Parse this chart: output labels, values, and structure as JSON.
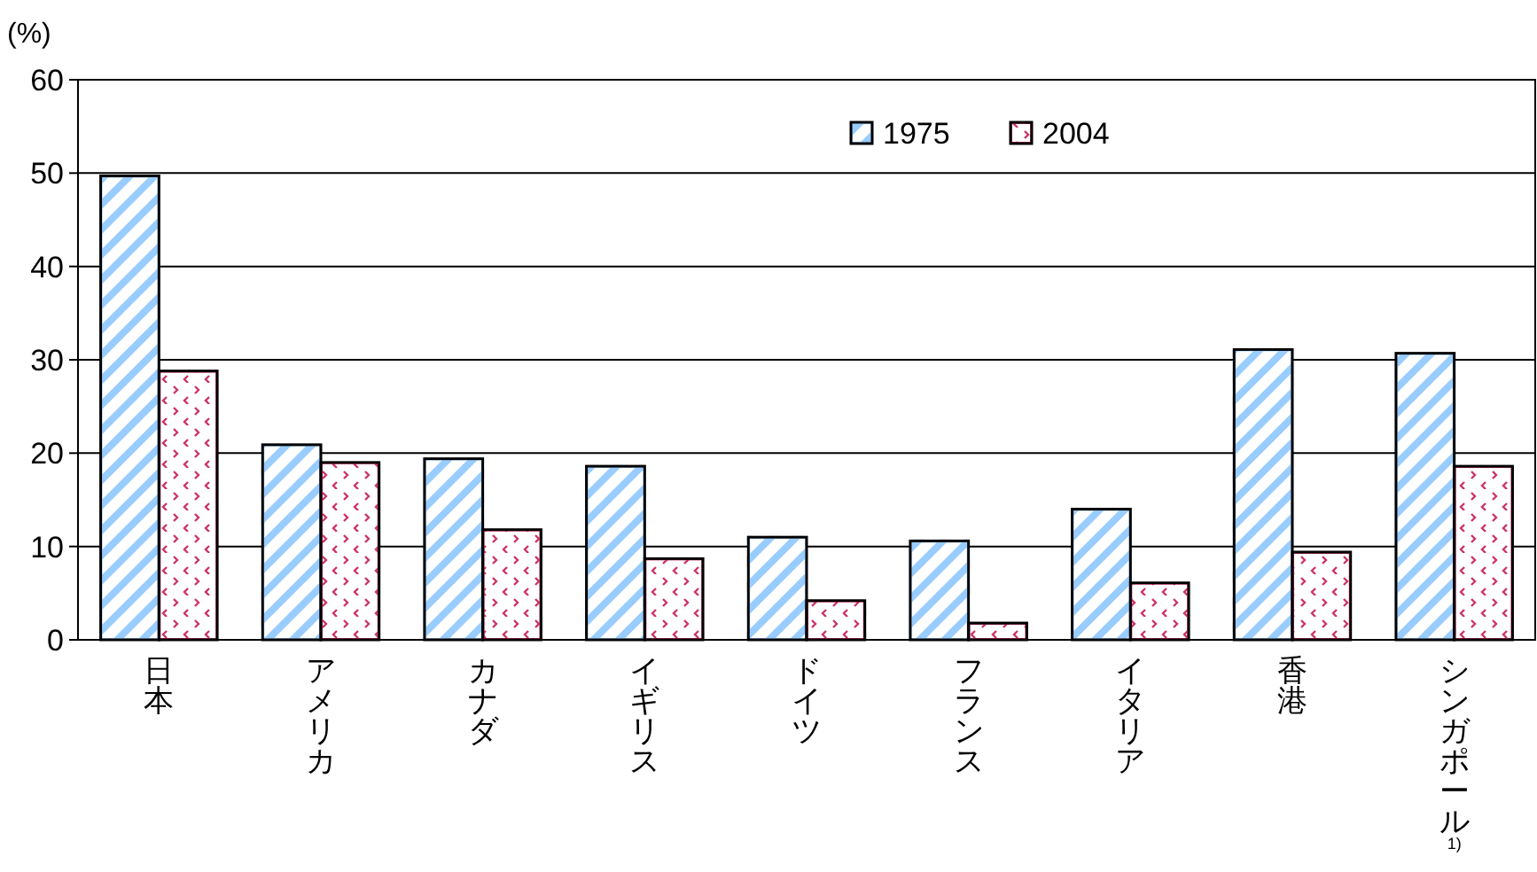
{
  "chart_data": {
    "type": "bar",
    "ylabel": "(%)",
    "categories": [
      "日本",
      "アメリカ",
      "カナダ",
      "イギリス",
      "ドイツ",
      "フランス",
      "イタリア",
      "香港",
      "シンガポール$^{1)}$"
    ],
    "series": [
      {
        "name": "1975",
        "color": "#99ccff",
        "values": [
          49.7,
          20.9,
          19.4,
          18.6,
          11.0,
          10.6,
          14.0,
          31.1,
          30.7
        ]
      },
      {
        "name": "2004",
        "color": "#cc3366",
        "values": [
          28.8,
          19.0,
          11.8,
          8.7,
          4.2,
          1.8,
          6.1,
          9.4,
          18.6
        ]
      }
    ],
    "ylim": [
      0,
      60
    ],
    "yticks": [
      0,
      10,
      20,
      30,
      40,
      50,
      60
    ],
    "grid": "y",
    "legend": "top"
  }
}
